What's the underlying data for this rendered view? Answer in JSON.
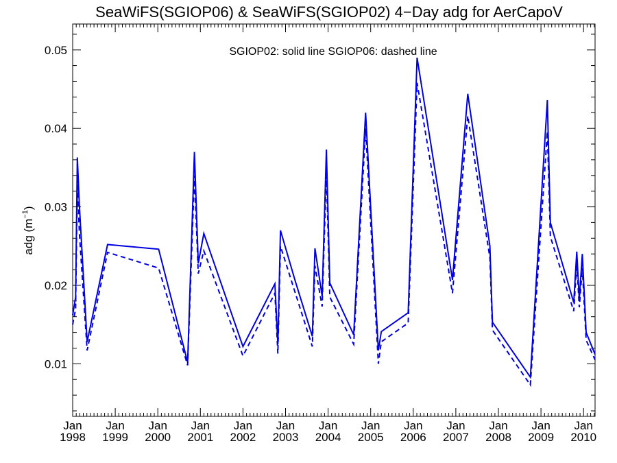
{
  "chart_data": {
    "type": "line",
    "title": "SeaWiFS(SGIOP06) & SeaWiFS(SGIOP02) 4−Day adg for AerCapoV",
    "ylabel": "adg (m",
    "ylabel_sup": "−1",
    "ylabel_close": ")",
    "annotation": "SGIOP02: solid line   SGIOP06: dashed line",
    "ylim": [
      0.0033,
      0.0533
    ],
    "yticks": [
      0.01,
      0.02,
      0.03,
      0.04,
      0.05
    ],
    "ytick_labels": [
      "0.01",
      "0.02",
      "0.03",
      "0.04",
      "0.05"
    ],
    "xlim": [
      1998.0,
      2010.27
    ],
    "xticks": [
      {
        "x": 1998,
        "month": "Jan",
        "year": "1998"
      },
      {
        "x": 1999,
        "month": "Jan",
        "year": "1999"
      },
      {
        "x": 2000,
        "month": "Jan",
        "year": "2000"
      },
      {
        "x": 2001,
        "month": "Jan",
        "year": "2001"
      },
      {
        "x": 2002,
        "month": "Jan",
        "year": "2002"
      },
      {
        "x": 2003,
        "month": "Jan",
        "year": "2003"
      },
      {
        "x": 2004,
        "month": "Jan",
        "year": "2004"
      },
      {
        "x": 2005,
        "month": "Jan",
        "year": "2005"
      },
      {
        "x": 2006,
        "month": "Jan",
        "year": "2006"
      },
      {
        "x": 2007,
        "month": "Jan",
        "year": "2007"
      },
      {
        "x": 2008,
        "month": "Jan",
        "year": "2008"
      },
      {
        "x": 2009,
        "month": "Jan",
        "year": "2009"
      },
      {
        "x": 2010,
        "month": "Jan",
        "year": "2010"
      }
    ],
    "line_color": "#0000e0",
    "series": [
      {
        "name": "SGIOP02",
        "style": "solid",
        "points": [
          [
            1998.0,
            0.0162
          ],
          [
            1998.07,
            0.0185
          ],
          [
            1998.11,
            0.0363
          ],
          [
            1998.16,
            0.03
          ],
          [
            1998.34,
            0.0128
          ],
          [
            1998.82,
            0.0252
          ],
          [
            2000.02,
            0.0246
          ],
          [
            2000.7,
            0.0102
          ],
          [
            2000.86,
            0.037
          ],
          [
            2000.95,
            0.0228
          ],
          [
            2001.08,
            0.0266
          ],
          [
            2002.0,
            0.0122
          ],
          [
            2002.75,
            0.0202
          ],
          [
            2002.82,
            0.0125
          ],
          [
            2002.88,
            0.027
          ],
          [
            2003.23,
            0.0205
          ],
          [
            2003.63,
            0.0135
          ],
          [
            2003.69,
            0.0247
          ],
          [
            2003.86,
            0.0186
          ],
          [
            2003.96,
            0.0373
          ],
          [
            2004.04,
            0.0203
          ],
          [
            2004.6,
            0.0137
          ],
          [
            2004.88,
            0.042
          ],
          [
            2005.18,
            0.0117
          ],
          [
            2005.25,
            0.0141
          ],
          [
            2005.88,
            0.0165
          ],
          [
            2006.09,
            0.049
          ],
          [
            2006.92,
            0.0207
          ],
          [
            2007.28,
            0.0444
          ],
          [
            2007.8,
            0.025
          ],
          [
            2007.86,
            0.0153
          ],
          [
            2008.75,
            0.0083
          ],
          [
            2009.15,
            0.0436
          ],
          [
            2009.22,
            0.028
          ],
          [
            2009.77,
            0.0178
          ],
          [
            2009.84,
            0.0243
          ],
          [
            2009.9,
            0.0182
          ],
          [
            2009.97,
            0.024
          ],
          [
            2010.06,
            0.014
          ],
          [
            2010.27,
            0.0112
          ]
        ]
      },
      {
        "name": "SGIOP06",
        "style": "dashed",
        "points": [
          [
            1998.0,
            0.015
          ],
          [
            1998.07,
            0.017
          ],
          [
            1998.11,
            0.0328
          ],
          [
            1998.16,
            0.0265
          ],
          [
            1998.34,
            0.0117
          ],
          [
            1998.82,
            0.0242
          ],
          [
            2000.02,
            0.0222
          ],
          [
            2000.7,
            0.0098
          ],
          [
            2000.86,
            0.034
          ],
          [
            2000.95,
            0.0215
          ],
          [
            2001.08,
            0.0244
          ],
          [
            2002.0,
            0.011
          ],
          [
            2002.75,
            0.019
          ],
          [
            2002.82,
            0.0113
          ],
          [
            2002.88,
            0.025
          ],
          [
            2003.23,
            0.019
          ],
          [
            2003.63,
            0.0122
          ],
          [
            2003.69,
            0.0225
          ],
          [
            2003.86,
            0.0173
          ],
          [
            2003.96,
            0.0345
          ],
          [
            2004.04,
            0.0185
          ],
          [
            2004.6,
            0.0125
          ],
          [
            2004.88,
            0.04
          ],
          [
            2005.18,
            0.01
          ],
          [
            2005.25,
            0.0128
          ],
          [
            2005.88,
            0.0152
          ],
          [
            2006.09,
            0.0458
          ],
          [
            2006.92,
            0.019
          ],
          [
            2007.28,
            0.0416
          ],
          [
            2007.8,
            0.0235
          ],
          [
            2007.86,
            0.0143
          ],
          [
            2008.75,
            0.0073
          ],
          [
            2009.15,
            0.0396
          ],
          [
            2009.22,
            0.0262
          ],
          [
            2009.77,
            0.0167
          ],
          [
            2009.84,
            0.0228
          ],
          [
            2009.9,
            0.0172
          ],
          [
            2009.97,
            0.0222
          ],
          [
            2010.06,
            0.013
          ],
          [
            2010.27,
            0.0105
          ]
        ]
      }
    ]
  }
}
